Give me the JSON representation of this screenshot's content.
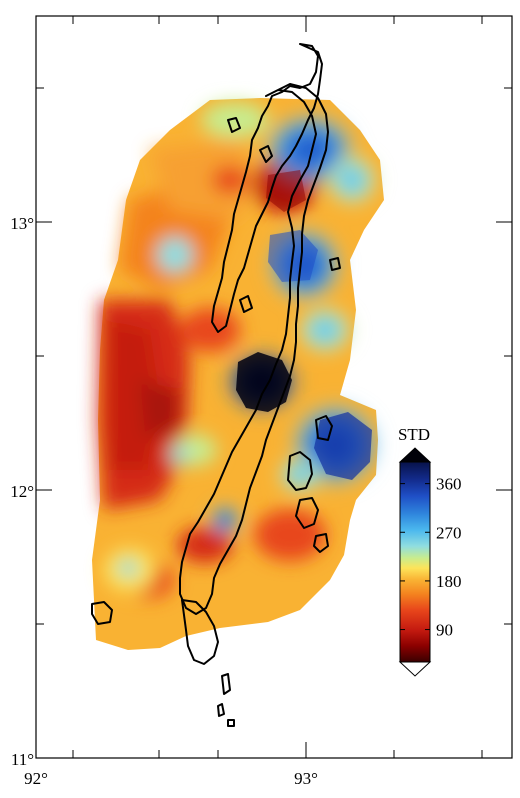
{
  "map": {
    "x_ticks": [
      {
        "value": 92,
        "label": "92°"
      },
      {
        "value": 93,
        "label": "93°"
      }
    ],
    "y_ticks": [
      {
        "value": 11,
        "label": "11°"
      },
      {
        "value": 12,
        "label": "12°"
      },
      {
        "value": 13,
        "label": "13°"
      }
    ],
    "lon_range": [
      92,
      93.75
    ],
    "lat_range": [
      11,
      13.8
    ],
    "colorbar": {
      "title": "STD",
      "tick_labels": [
        {
          "value": 90,
          "label": "90"
        },
        {
          "value": 180,
          "label": "180"
        },
        {
          "value": 270,
          "label": "270"
        },
        {
          "value": 360,
          "label": "360"
        }
      ],
      "range": [
        30,
        400
      ],
      "colors": [
        "#3a0000",
        "#8b0000",
        "#c41a10",
        "#e8461b",
        "#f4831f",
        "#f9b233",
        "#fde45a",
        "#c8ec8e",
        "#8fdde0",
        "#4bb8ee",
        "#2f86dd",
        "#1f4fc6",
        "#132c8e",
        "#07124a",
        "#000008"
      ]
    }
  }
}
